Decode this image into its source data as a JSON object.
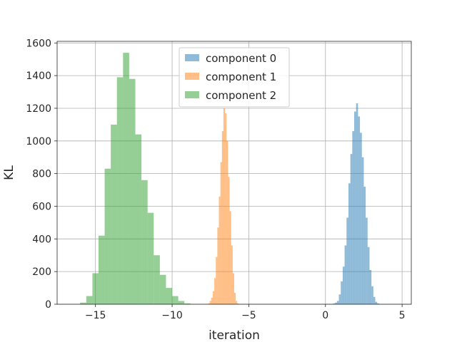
{
  "chart_data": {
    "type": "bar",
    "subtype": "histogram",
    "title": "",
    "xlabel": "iteration",
    "ylabel": "KL",
    "xlim": [
      -17.5,
      5.6
    ],
    "ylim": [
      0,
      1610
    ],
    "xticks": [
      -15,
      -10,
      -5,
      0,
      5
    ],
    "xtick_labels": [
      "−15",
      "−10",
      "−5",
      "0",
      "5"
    ],
    "yticks": [
      0,
      200,
      400,
      600,
      800,
      1000,
      1200,
      1400,
      1600
    ],
    "grid": true,
    "legend_position": "top-center",
    "series": [
      {
        "name": "component 0",
        "color": "#1f77b4",
        "alpha": 0.5,
        "bin_start": 0.5,
        "bin_width": 0.125,
        "counts": [
          5,
          10,
          20,
          60,
          140,
          230,
          360,
          530,
          740,
          920,
          1060,
          1180,
          1230,
          1150,
          1050,
          900,
          720,
          530,
          350,
          210,
          110,
          45,
          15,
          5
        ]
      },
      {
        "name": "component 1",
        "color": "#ff7f0e",
        "alpha": 0.5,
        "bin_start": -7.65,
        "bin_width": 0.1,
        "counts": [
          5,
          20,
          40,
          80,
          160,
          290,
          470,
          660,
          870,
          1060,
          1200,
          1170,
          1000,
          780,
          570,
          360,
          190,
          70,
          20,
          5
        ]
      },
      {
        "name": "component 2",
        "color": "#2ca02c",
        "alpha": 0.5,
        "bin_start": -16.0,
        "bin_width": 0.4,
        "counts": [
          10,
          50,
          190,
          420,
          830,
          1100,
          1390,
          1540,
          1380,
          1040,
          760,
          560,
          300,
          180,
          100,
          50,
          20,
          5
        ]
      }
    ]
  }
}
